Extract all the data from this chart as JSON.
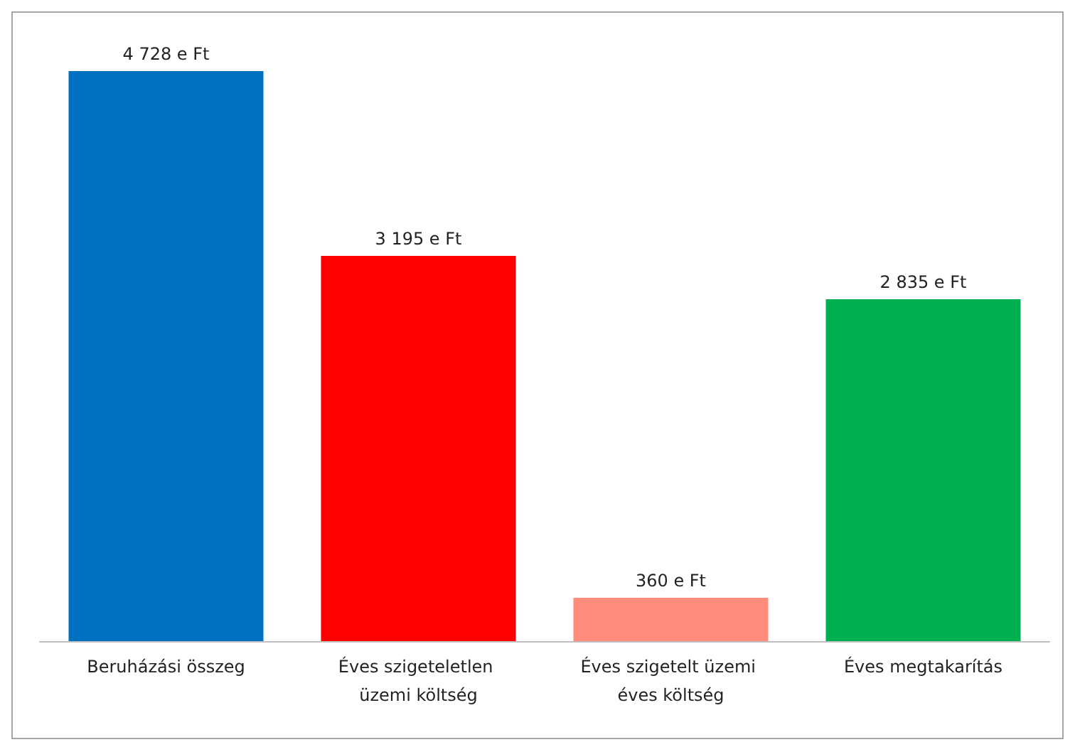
{
  "chart_data": {
    "type": "bar",
    "categories": [
      "Beruházási összeg",
      "Éves szigeteletlen üzemi költség",
      "Éves szigetelt üzemi éves költség",
      "Éves megtakarítás"
    ],
    "values": [
      4728,
      3195,
      360,
      2835
    ],
    "colors": [
      "#0070c0",
      "#ff0000",
      "#ff8b7b",
      "#00b050"
    ],
    "value_labels": [
      "4 728 e Ft",
      "3 195 e Ft",
      "360 e Ft",
      "2 835 e Ft"
    ]
  }
}
